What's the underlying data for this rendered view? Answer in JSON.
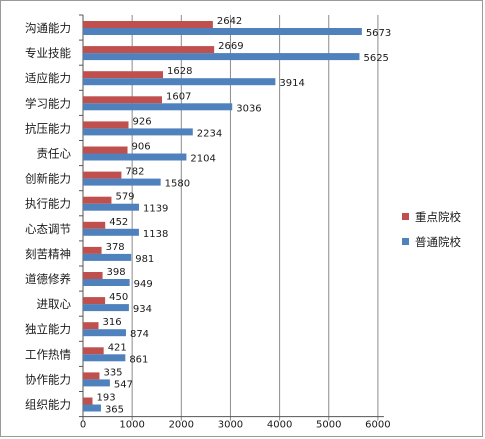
{
  "chart_data": {
    "type": "bar",
    "orientation": "horizontal",
    "categories": [
      "沟通能力",
      "专业技能",
      "适应能力",
      "学习能力",
      "抗压能力",
      "责任心",
      "创新能力",
      "执行能力",
      "心态调节",
      "刻苦精神",
      "道德修养",
      "进取心",
      "独立能力",
      "工作热情",
      "协作能力",
      "组织能力"
    ],
    "series": [
      {
        "name": "重点院校",
        "color": "#c0504d",
        "values": [
          2642,
          2669,
          1628,
          1607,
          926,
          906,
          782,
          579,
          452,
          378,
          398,
          450,
          316,
          421,
          335,
          193
        ]
      },
      {
        "name": "普通院校",
        "color": "#4f81bd",
        "values": [
          5673,
          5625,
          3914,
          3036,
          2234,
          2104,
          1580,
          1139,
          1138,
          981,
          949,
          934,
          874,
          861,
          547,
          365
        ]
      }
    ],
    "xlim": [
      0,
      6000
    ],
    "xticks": [
      "0",
      "1000",
      "2000",
      "3000",
      "4000",
      "5000",
      "6000"
    ],
    "legend_position": "right",
    "grid": "vertical"
  }
}
